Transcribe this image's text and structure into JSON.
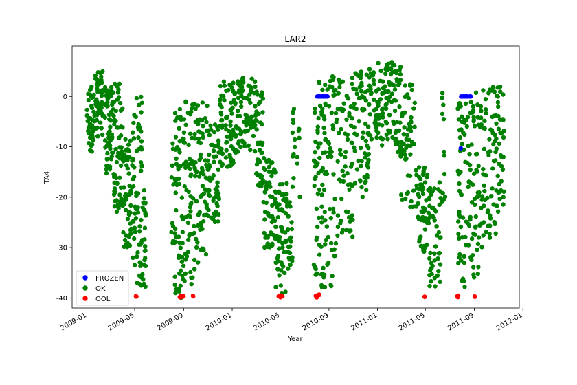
{
  "chart_data": {
    "type": "scatter",
    "title": "LAR2",
    "xlabel": "Year",
    "ylabel": "TA4",
    "x_range": [
      "2008-11-25",
      "2011-12-23"
    ],
    "ylim": [
      -42,
      10
    ],
    "x_ticks": [
      "2009-01",
      "2009-05",
      "2009-09",
      "2010-01",
      "2010-05",
      "2010-09",
      "2011-01",
      "2011-05",
      "2011-09",
      "2012-01"
    ],
    "y_ticks": [
      0,
      -10,
      -20,
      -30,
      -40
    ],
    "grid": false,
    "legend_position": "lower-left",
    "series": [
      {
        "name": "FROZEN",
        "color": "#0000ff",
        "segments": [
          {
            "start": "2010-08-01",
            "end": "2010-08-31",
            "low": 0,
            "high": 0,
            "count": 20
          },
          {
            "start": "2011-07-28",
            "end": "2011-08-23",
            "low": 0,
            "high": 0,
            "count": 18
          }
        ],
        "points": [
          {
            "x": "2011-07-29",
            "y": -10.3
          }
        ]
      },
      {
        "name": "OK",
        "color": "#008000",
        "segments": [
          {
            "start": "2009-01-01",
            "end": "2009-01-20",
            "low": -11,
            "high": 2,
            "count": 45
          },
          {
            "start": "2009-01-20",
            "end": "2009-02-15",
            "low": -8,
            "high": 5,
            "count": 55
          },
          {
            "start": "2009-02-15",
            "end": "2009-03-10",
            "low": -16,
            "high": 2,
            "count": 55
          },
          {
            "start": "2009-03-10",
            "end": "2009-04-01",
            "low": -23,
            "high": 3,
            "count": 55
          },
          {
            "start": "2009-04-01",
            "end": "2009-04-22",
            "low": -30,
            "high": -8,
            "count": 50
          },
          {
            "start": "2009-04-22",
            "end": "2009-05-20",
            "low": -38,
            "high": 0,
            "count": 70
          },
          {
            "start": "2009-05-20",
            "end": "2009-05-29",
            "low": -38,
            "high": -18,
            "count": 25
          },
          {
            "start": "2009-08-01",
            "end": "2009-08-10",
            "low": -35,
            "high": 1,
            "count": 12
          },
          {
            "start": "2009-08-10",
            "end": "2009-08-31",
            "low": -40,
            "high": 0,
            "count": 55
          },
          {
            "start": "2009-08-31",
            "end": "2009-09-30",
            "low": -38,
            "high": 0,
            "count": 65
          },
          {
            "start": "2009-09-30",
            "end": "2009-10-31",
            "low": -33,
            "high": 0,
            "count": 70
          },
          {
            "start": "2009-10-31",
            "end": "2009-11-30",
            "low": -25,
            "high": -5,
            "count": 60
          },
          {
            "start": "2009-11-30",
            "end": "2010-01-10",
            "low": -14,
            "high": 3,
            "count": 80
          },
          {
            "start": "2010-01-10",
            "end": "2010-02-28",
            "low": -11,
            "high": 5,
            "count": 80
          },
          {
            "start": "2010-02-28",
            "end": "2010-03-20",
            "low": -18,
            "high": 1,
            "count": 45
          },
          {
            "start": "2010-03-20",
            "end": "2010-04-20",
            "low": -30,
            "high": -12,
            "count": 60
          },
          {
            "start": "2010-04-20",
            "end": "2010-05-20",
            "low": -40,
            "high": -16,
            "count": 60
          },
          {
            "start": "2010-05-20",
            "end": "2010-06-01",
            "low": -36,
            "high": -21,
            "count": 20
          },
          {
            "start": "2010-06-01",
            "end": "2010-06-20",
            "low": -22,
            "high": 0,
            "count": 18
          },
          {
            "start": "2010-07-25",
            "end": "2010-08-20",
            "low": -39,
            "high": 3,
            "count": 60
          },
          {
            "start": "2010-08-20",
            "end": "2010-09-20",
            "low": -38,
            "high": 4,
            "count": 65
          },
          {
            "start": "2010-09-20",
            "end": "2010-10-31",
            "low": -28,
            "high": 4,
            "count": 70
          },
          {
            "start": "2010-10-31",
            "end": "2010-12-10",
            "low": -20,
            "high": 5,
            "count": 70
          },
          {
            "start": "2010-12-10",
            "end": "2011-01-31",
            "low": -10,
            "high": 7,
            "count": 80
          },
          {
            "start": "2011-01-31",
            "end": "2011-03-01",
            "low": -12,
            "high": 7,
            "count": 55
          },
          {
            "start": "2011-03-01",
            "end": "2011-04-10",
            "low": -22,
            "high": 3,
            "count": 60
          },
          {
            "start": "2011-04-10",
            "end": "2011-05-10",
            "low": -31,
            "high": -14,
            "count": 50
          },
          {
            "start": "2011-05-10",
            "end": "2011-06-10",
            "low": -38,
            "high": -17,
            "count": 50
          },
          {
            "start": "2011-06-10",
            "end": "2011-06-20",
            "low": -25,
            "high": 1,
            "count": 12
          },
          {
            "start": "2011-07-20",
            "end": "2011-08-20",
            "low": -38,
            "high": 0,
            "count": 60
          },
          {
            "start": "2011-08-20",
            "end": "2011-09-20",
            "low": -37,
            "high": 1,
            "count": 60
          },
          {
            "start": "2011-09-20",
            "end": "2011-10-25",
            "low": -29,
            "high": 2,
            "count": 60
          },
          {
            "start": "2011-10-25",
            "end": "2011-11-15",
            "low": -23,
            "high": 2,
            "count": 40
          }
        ],
        "points": []
      },
      {
        "name": "OOL",
        "color": "#ff0000",
        "segments": [
          {
            "start": "2009-05-02",
            "end": "2009-05-06",
            "low": -40,
            "high": -39.5,
            "count": 3
          },
          {
            "start": "2009-08-22",
            "end": "2009-09-02",
            "low": -40,
            "high": -39.5,
            "count": 9
          },
          {
            "start": "2009-09-24",
            "end": "2009-09-27",
            "low": -40,
            "high": -39.5,
            "count": 2
          },
          {
            "start": "2010-04-27",
            "end": "2010-05-08",
            "low": -40,
            "high": -39.5,
            "count": 5
          },
          {
            "start": "2010-07-28",
            "end": "2010-08-09",
            "low": -40,
            "high": -39.3,
            "count": 5
          },
          {
            "start": "2011-04-27",
            "end": "2011-04-30",
            "low": -40,
            "high": -39.5,
            "count": 2
          },
          {
            "start": "2011-07-19",
            "end": "2011-07-24",
            "low": -40,
            "high": -39.5,
            "count": 3
          },
          {
            "start": "2011-09-01",
            "end": "2011-09-04",
            "low": -40,
            "high": -39.5,
            "count": 2
          }
        ],
        "points": []
      }
    ]
  }
}
